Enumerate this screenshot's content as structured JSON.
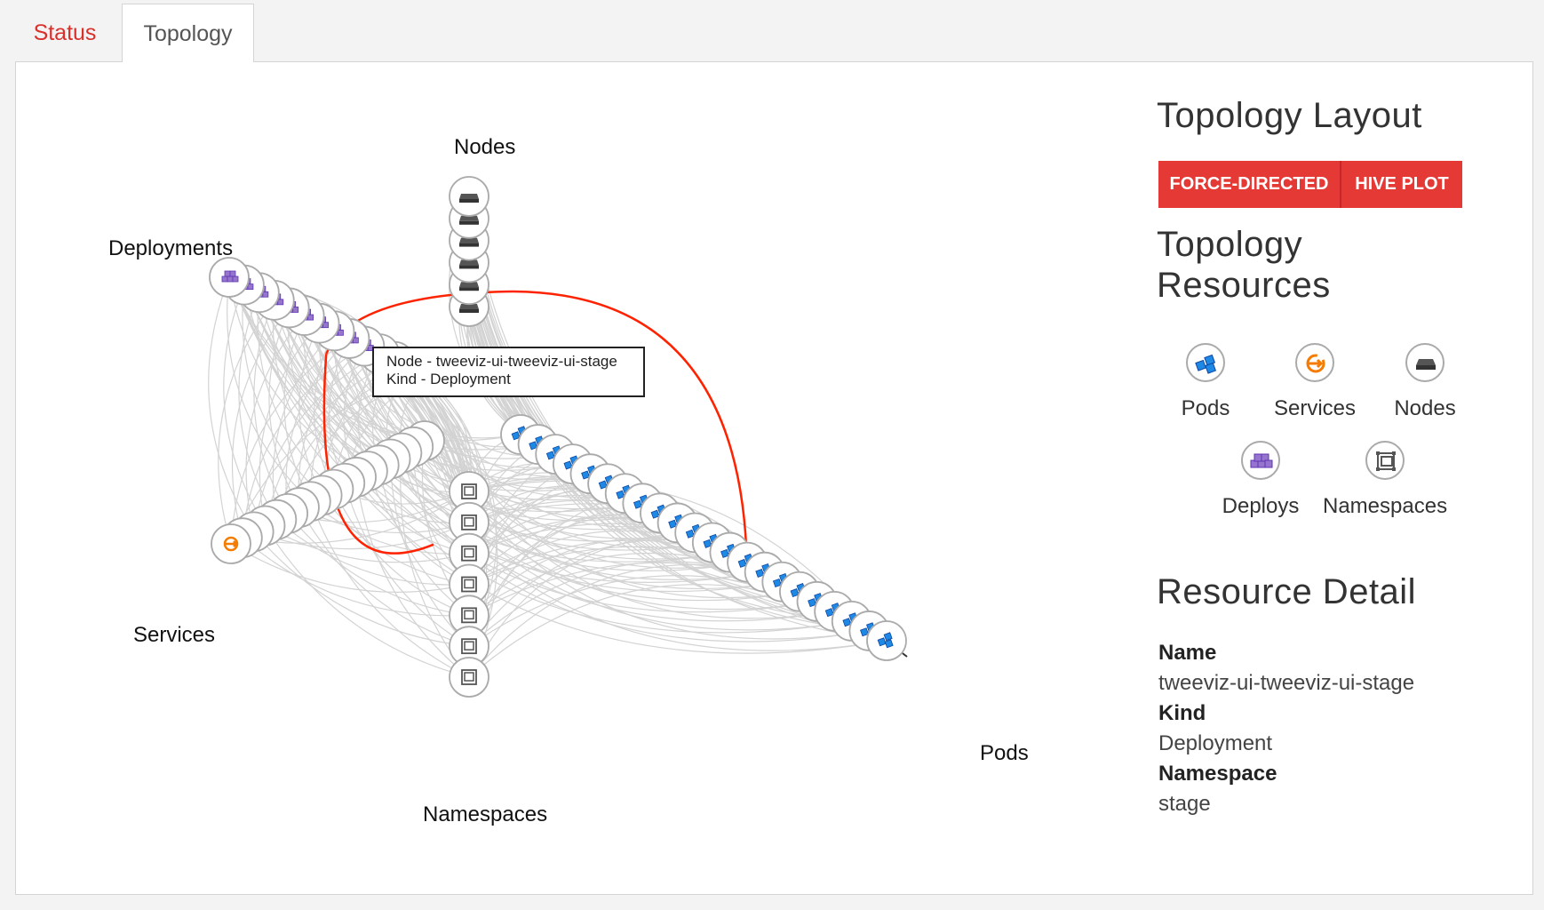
{
  "tabs": [
    {
      "label": "Status"
    },
    {
      "label": "Topology"
    }
  ],
  "axes": {
    "nodes": "Nodes",
    "deployments": "Deployments",
    "services": "Services",
    "namespaces": "Namespaces",
    "pods": "Pods"
  },
  "tooltip": {
    "line1": "Node - tweeviz-ui-tweeviz-ui-stage",
    "line2": "Kind - Deployment"
  },
  "layout": {
    "title": "Topology Layout",
    "buttons": [
      "FORCE-DIRECTED",
      "HIVE PLOT"
    ]
  },
  "resources": {
    "title": "Topology Resources",
    "items": [
      {
        "label": "Pods",
        "icon": "pod-icon"
      },
      {
        "label": "Services",
        "icon": "service-icon"
      },
      {
        "label": "Nodes",
        "icon": "node-icon"
      },
      {
        "label": "Deploys",
        "icon": "deployment-icon"
      },
      {
        "label": "Namespaces",
        "icon": "namespace-icon"
      }
    ]
  },
  "detail": {
    "title": "Resource Detail",
    "name_label": "Name",
    "name_value": "tweeviz-ui-tweeviz-ui-stage",
    "kind_label": "Kind",
    "kind_value": "Deployment",
    "namespace_label": "Namespace",
    "namespace_value": "stage"
  },
  "colors": {
    "accent": "#e53935",
    "pod": "#1e88e5",
    "service": "#f57c00",
    "deployment": "#7e57c2",
    "node": "#555555",
    "namespace": "#555555",
    "highlight": "#ff2200"
  }
}
